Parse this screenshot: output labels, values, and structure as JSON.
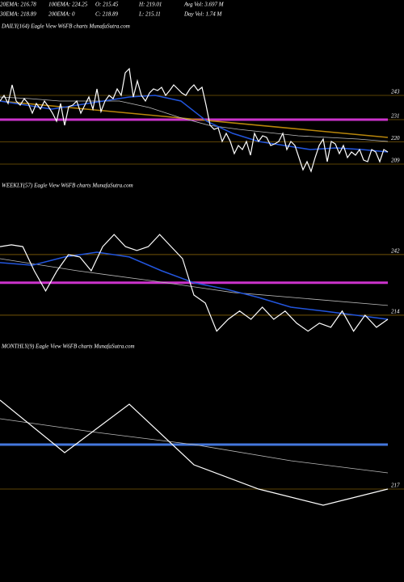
{
  "header": {
    "row1": [
      "20EMA: 216.78",
      "100EMA: 224.25",
      "O: 215.45",
      "H: 219.01",
      "Avg Vol: 3.697 M"
    ],
    "row2": [
      "30EMA: 218.89",
      "200EMA: 0",
      "C: 218.89",
      "L: 215.11",
      "Day Vol: 1.74  M"
    ]
  },
  "chart_data": [
    {
      "type": "line",
      "title": "DAILY(164) Eagle  View  W6FB charts MunafaSutra.com",
      "ylim": [
        204.2,
        272.2
      ],
      "yticks": [
        243,
        231,
        220,
        209
      ],
      "hlines": [
        {
          "value": 231,
          "color": "#cc33cc"
        }
      ],
      "series": [
        {
          "color": "#b8860b",
          "values": [
            240.2,
            222.2
          ]
        },
        {
          "color": "#bbbbbb",
          "values": [
            242.2,
            241.4,
            240.2,
            240.2,
            240.2,
            237,
            232.2,
            228.2,
            226.2,
            224.6,
            223,
            222.2,
            221.4,
            220.2
          ]
        },
        {
          "color": "#2255dd",
          "values": [
            240.2,
            238.2,
            236.2,
            238.2,
            240.2,
            242.2,
            243,
            240.2,
            230.2,
            224.2,
            220.2,
            218.2,
            216.2,
            217,
            216.2,
            215
          ]
        },
        {
          "color": "#ffffff",
          "values": [
            240.2,
            243,
            239,
            248.2,
            240.2,
            238.2,
            241.4,
            239,
            234.2,
            239,
            236.2,
            240.2,
            237.4,
            234.2,
            230.2,
            239,
            228.2,
            237.4,
            238.2,
            240.2,
            234.2,
            238.2,
            242.2,
            236.2,
            246.2,
            235,
            240.2,
            243,
            241.4,
            246.2,
            243,
            254.2,
            256.2,
            242.2,
            250.2,
            243,
            240.2,
            244.2,
            246.2,
            245.4,
            247,
            243,
            245.4,
            248.2,
            246.2,
            244.2,
            243,
            246.2,
            248.2,
            245.4,
            247,
            238.2,
            228.2,
            226.2,
            227,
            220.2,
            224.2,
            220.2,
            214.2,
            218.2,
            216.2,
            220.2,
            213.4,
            224.2,
            220.2,
            223,
            222.2,
            218.2,
            219,
            220.2,
            224.2,
            216.2,
            220.2,
            218.2,
            212.2,
            206.2,
            210.2,
            205.4,
            212.2,
            218.2,
            221.4,
            210.2,
            220.2,
            219,
            214.2,
            218.2,
            212.2,
            215,
            213.4,
            216.2,
            211,
            210.2,
            216.2,
            215,
            210.2,
            216.2,
            215
          ]
        }
      ]
    },
    {
      "type": "line",
      "title": "WEEKLY(57) Eagle  View  W6FB charts MunafaSutra.com",
      "ylim": [
        206.5,
        270
      ],
      "yticks": [
        242,
        214
      ],
      "hlines": [
        {
          "value": 229,
          "color": "#cc33cc"
        }
      ],
      "series": [
        {
          "color": "#bbbbbb",
          "values": [
            240.1,
            234.5,
            229.7,
            224.5,
            221.5,
            218.5
          ]
        },
        {
          "color": "#2255dd",
          "values": [
            238.3,
            237.1,
            240.9,
            243.1,
            240.9,
            234.5,
            229,
            226,
            222.2,
            217.7,
            215.9,
            214,
            212.1
          ]
        },
        {
          "color": "#ffffff",
          "values": [
            245.7,
            246.5,
            245.7,
            234.5,
            225.2,
            234.5,
            242,
            240.9,
            234.5,
            245.7,
            251.3,
            245.7,
            243.9,
            245.7,
            251.3,
            245.7,
            240.1,
            223.3,
            219.6,
            206.6,
            212.1,
            215.9,
            212.1,
            217.7,
            212.1,
            215.9,
            210.3,
            206.6,
            210.3,
            208.4,
            215.9,
            206.6,
            214,
            208.4,
            212.1
          ]
        }
      ]
    },
    {
      "type": "line",
      "title": "MONTHLY(9) Eagle  View  W6FB charts MunafaSutra.com",
      "ylim": [
        159.5,
        304.5
      ],
      "yticks": [
        217
      ],
      "hlines": [
        {
          "value": 244.5,
          "color": "#4477dd"
        }
      ],
      "series": [
        {
          "color": "#bbbbbb",
          "values": [
            260.5,
            252,
            244.5,
            234.5,
            227
          ]
        },
        {
          "color": "#ffffff",
          "values": [
            272,
            239.5,
            269.5,
            232,
            217,
            207,
            217
          ]
        }
      ]
    }
  ]
}
